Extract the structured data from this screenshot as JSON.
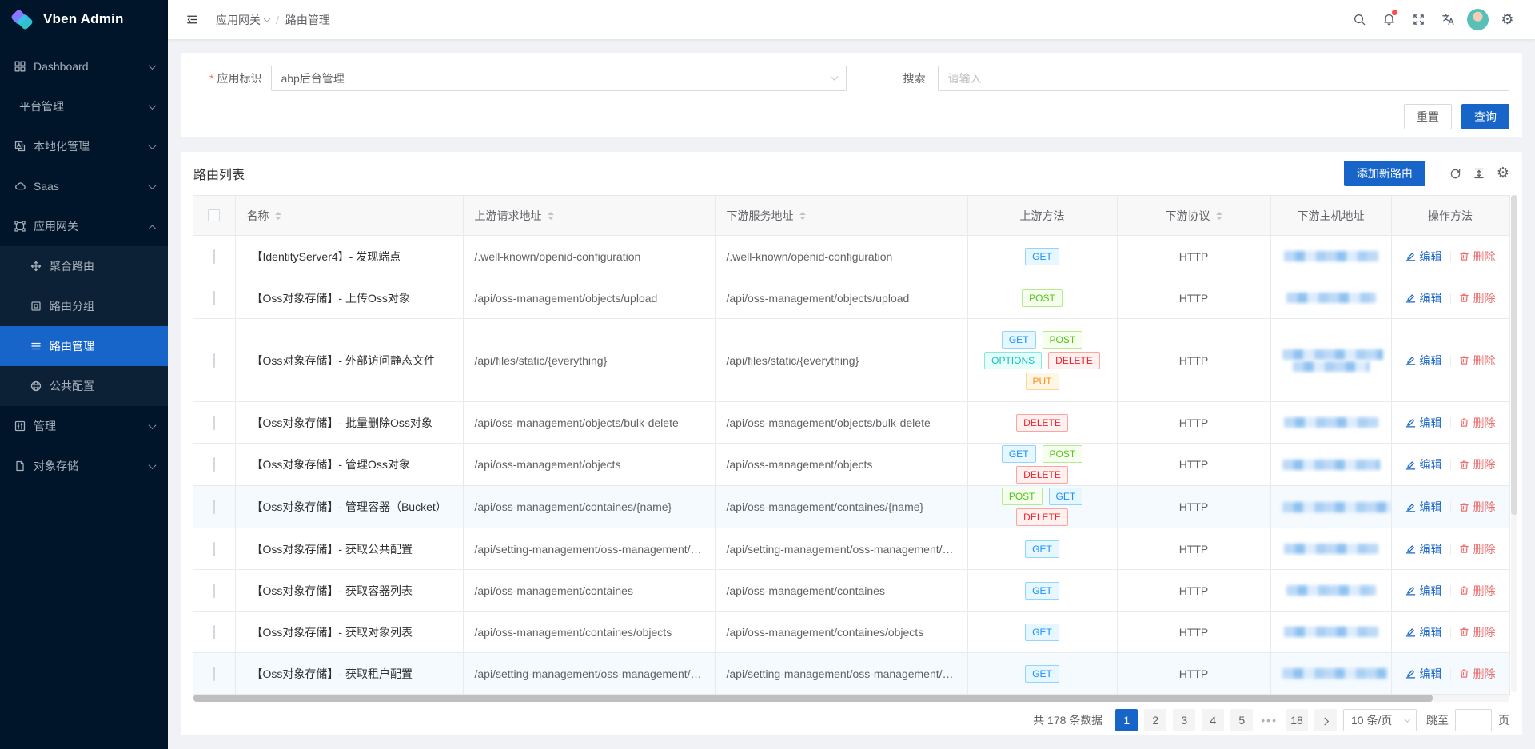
{
  "colors": {
    "primary": "#1765c8",
    "sidebar_bg": "#001529",
    "submenu_bg": "#0c2135",
    "notification_dot": "#ff4d4f",
    "edit_link": "#1765c8",
    "delete_link": "#ed6f6f",
    "stripe_row": "#f5fafe"
  },
  "sidebar": {
    "logo_text": "Vben Admin",
    "items": [
      {
        "key": "dashboard",
        "label": "Dashboard",
        "icon": "dashboard-icon",
        "chevron": "down"
      },
      {
        "key": "platform-management",
        "label": "平台管理",
        "icon": null,
        "chevron": "down"
      },
      {
        "key": "localization-management",
        "label": "本地化管理",
        "icon": "localization-icon",
        "chevron": "down"
      },
      {
        "key": "saas",
        "label": "Saas",
        "icon": "saas-icon",
        "chevron": "down"
      },
      {
        "key": "app-gateway",
        "label": "应用网关",
        "icon": "gateway-icon",
        "chevron": "up",
        "expanded": true,
        "children": [
          {
            "key": "aggregate-route",
            "label": "聚合路由",
            "icon": "aggregate-route-icon"
          },
          {
            "key": "route-group",
            "label": "路由分组",
            "icon": "route-group-icon"
          },
          {
            "key": "route-management",
            "label": "路由管理",
            "icon": "route-manage-icon",
            "active": true
          },
          {
            "key": "public-config",
            "label": "公共配置",
            "icon": "public-config-icon"
          }
        ]
      },
      {
        "key": "management",
        "label": "管理",
        "icon": "manage-icon",
        "chevron": "down"
      },
      {
        "key": "object-storage",
        "label": "对象存储",
        "icon": "object-storage-icon",
        "chevron": "down"
      }
    ]
  },
  "header": {
    "breadcrumb": [
      "应用网关",
      "路由管理"
    ],
    "icons": [
      "search-icon",
      "notification-icon",
      "fullscreen-icon",
      "translate-icon",
      "avatar",
      "settings-icon"
    ]
  },
  "filter": {
    "app_required": "*",
    "app_label": "应用标识",
    "app_value": "abp后台管理",
    "search_label": "搜索",
    "search_placeholder": "请输入",
    "reset_label": "重置",
    "query_label": "查询"
  },
  "table": {
    "title": "路由列表",
    "add_button": "添加新路由",
    "toolbar_icons": [
      "refresh-icon",
      "row-height-icon",
      "column-settings-icon"
    ],
    "edit_label": "编辑",
    "delete_label": "删除",
    "edit_icon": "pencil-icon",
    "delete_icon": "trash-icon",
    "columns": [
      {
        "label": "",
        "type": "checkbox"
      },
      {
        "label": "名称",
        "sortable": true,
        "align": "left"
      },
      {
        "label": "上游请求地址",
        "sortable": true,
        "align": "left"
      },
      {
        "label": "下游服务地址",
        "sortable": true,
        "align": "left"
      },
      {
        "label": "上游方法",
        "sortable": false,
        "align": "center"
      },
      {
        "label": "下游协议",
        "sortable": true,
        "align": "center"
      },
      {
        "label": "下游主机地址",
        "sortable": false,
        "align": "center"
      },
      {
        "label": "操作方法",
        "sortable": false,
        "align": "center"
      }
    ],
    "rows": [
      {
        "name": "【IdentityServer4】- 发现端点",
        "upstream": "/.well-known/openid-configuration",
        "downstream": "/.well-known/openid-configuration",
        "methods": [
          "GET"
        ],
        "scheme": "HTTP",
        "host_redacted": true
      },
      {
        "name": "【Oss对象存储】- 上传Oss对象",
        "upstream": "/api/oss-management/objects/upload",
        "downstream": "/api/oss-management/objects/upload",
        "methods": [
          "POST"
        ],
        "scheme": "HTTP",
        "host_redacted": true
      },
      {
        "name": "【Oss对象存储】- 外部访问静态文件",
        "upstream": "/api/files/static/{everything}",
        "downstream": "/api/files/static/{everything}",
        "methods": [
          "GET",
          "POST",
          "OPTIONS",
          "DELETE",
          "PUT"
        ],
        "scheme": "HTTP",
        "host_redacted": true,
        "tall": true
      },
      {
        "name": "【Oss对象存储】- 批量删除Oss对象",
        "upstream": "/api/oss-management/objects/bulk-delete",
        "downstream": "/api/oss-management/objects/bulk-delete",
        "methods": [
          "DELETE"
        ],
        "scheme": "HTTP",
        "host_redacted": true
      },
      {
        "name": "【Oss对象存储】- 管理Oss对象",
        "upstream": "/api/oss-management/objects",
        "downstream": "/api/oss-management/objects",
        "methods": [
          "GET",
          "POST",
          "DELETE"
        ],
        "scheme": "HTTP",
        "host_redacted": true
      },
      {
        "name": "【Oss对象存储】- 管理容器（Bucket）",
        "upstream": "/api/oss-management/containes/{name}",
        "downstream": "/api/oss-management/containes/{name}",
        "methods": [
          "POST",
          "GET",
          "DELETE"
        ],
        "scheme": "HTTP",
        "host_redacted": true,
        "striped": true
      },
      {
        "name": "【Oss对象存储】- 获取公共配置",
        "upstream": "/api/setting-management/oss-management/b...",
        "downstream": "/api/setting-management/oss-management/b...",
        "methods": [
          "GET"
        ],
        "scheme": "HTTP",
        "host_redacted": true
      },
      {
        "name": "【Oss对象存储】- 获取容器列表",
        "upstream": "/api/oss-management/containes",
        "downstream": "/api/oss-management/containes",
        "methods": [
          "GET"
        ],
        "scheme": "HTTP",
        "host_redacted": true
      },
      {
        "name": "【Oss对象存储】- 获取对象列表",
        "upstream": "/api/oss-management/containes/objects",
        "downstream": "/api/oss-management/containes/objects",
        "methods": [
          "GET"
        ],
        "scheme": "HTTP",
        "host_redacted": true
      },
      {
        "name": "【Oss对象存储】- 获取租户配置",
        "upstream": "/api/setting-management/oss-management/b...",
        "downstream": "/api/setting-management/oss-management/b...",
        "methods": [
          "GET"
        ],
        "scheme": "HTTP",
        "host_redacted": true,
        "striped": true
      }
    ]
  },
  "method_colors": {
    "GET": {
      "fg": "#1890ff",
      "bg": "#e6f7ff",
      "border": "#91d5ff"
    },
    "POST": {
      "fg": "#52c41a",
      "bg": "#f6ffed",
      "border": "#b7eb8f"
    },
    "OPTIONS": {
      "fg": "#13c2c2",
      "bg": "#e6fffb",
      "border": "#87e8de"
    },
    "DELETE": {
      "fg": "#f5222d",
      "bg": "#fff1f0",
      "border": "#ffa39e"
    },
    "PUT": {
      "fg": "#fa8c16",
      "bg": "#fff7e6",
      "border": "#ffd591"
    }
  },
  "pagination": {
    "total": "共 178 条数据",
    "pages": [
      "1",
      "2",
      "3",
      "4",
      "5",
      "•••",
      "18"
    ],
    "active_page": "1",
    "next_label": ">",
    "page_size": "10 条/页",
    "jump_label": "跳至",
    "jump_suffix": "页"
  }
}
